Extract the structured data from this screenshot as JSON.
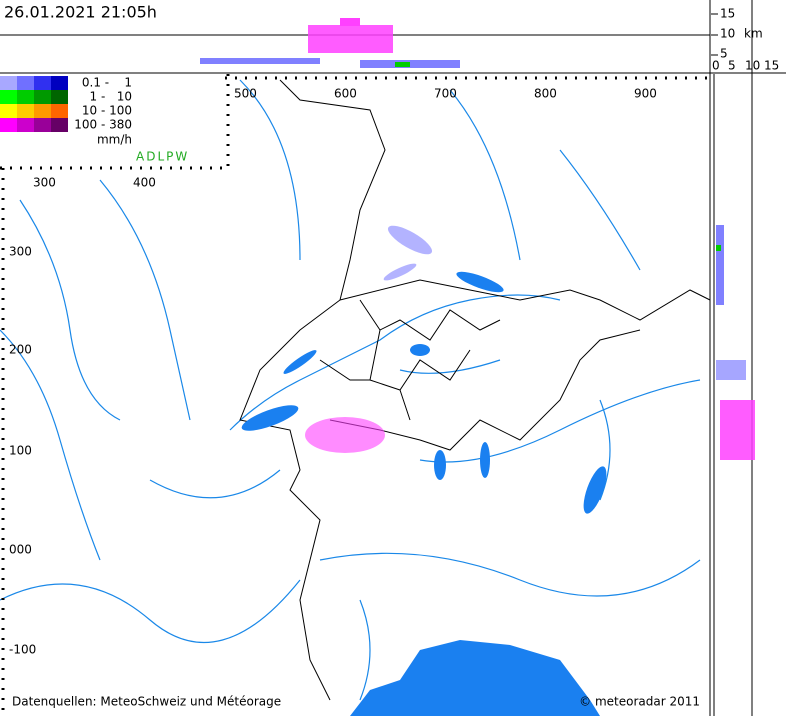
{
  "header": {
    "title": "26.01.2021 21:05h"
  },
  "height_axis": {
    "labels": [
      "15",
      "10",
      "5"
    ],
    "unit": "km",
    "bottom_labels": [
      "0",
      "5",
      "10",
      "15"
    ]
  },
  "legend": {
    "rows": [
      "0.1 -    1",
      "1 -   10",
      "10 - 100",
      "100 - 380"
    ],
    "unit": "mm/h",
    "network": "ADLPW"
  },
  "map_axis": {
    "top": [
      "500",
      "600",
      "700",
      "800",
      "900"
    ],
    "top_left": [
      "300",
      "400"
    ],
    "left": [
      "300",
      "200",
      "100",
      "000",
      "-100"
    ]
  },
  "footer": {
    "source": "Datenquellen: MeteoSchweiz und Météorage",
    "copyright": "© meteoradar 2011"
  }
}
